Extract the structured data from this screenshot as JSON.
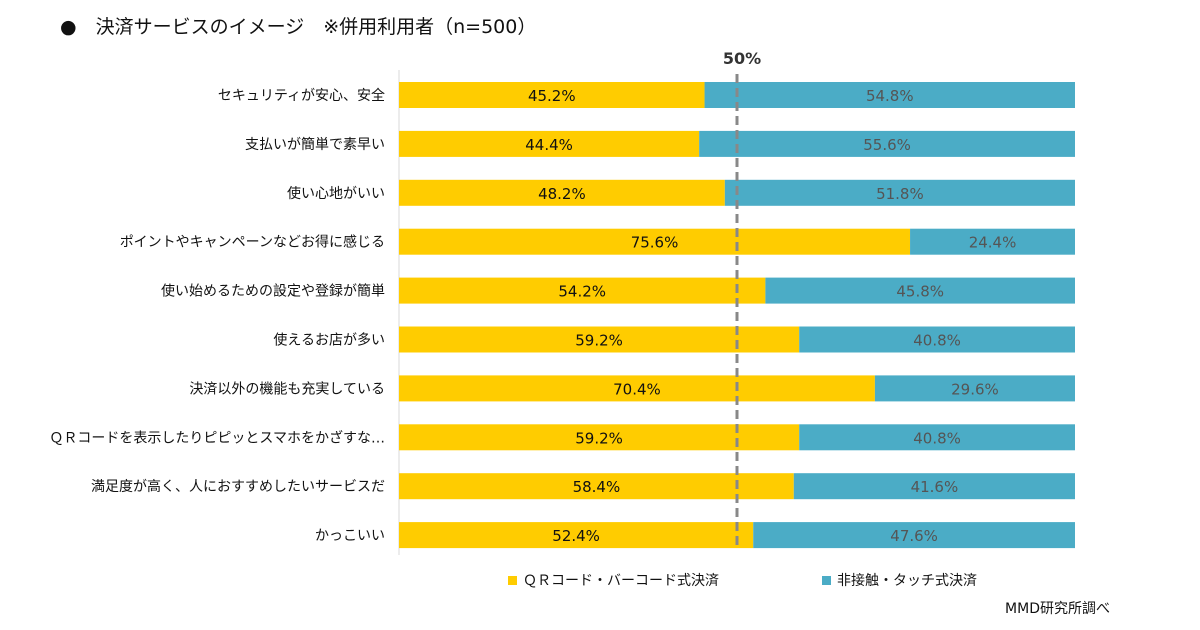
{
  "title": "●　決済サービスのイメージ　※併用利用者（n=500）",
  "source": "MMD研究所調べ",
  "chart_data": {
    "type": "bar",
    "orientation": "horizontal",
    "stacked": "100%",
    "categories": [
      "セキュリティが安心、安全",
      "支払いが簡単で素早い",
      "使い心地がいい",
      "ポイントやキャンペーンなどお得に感じる",
      "使い始めるための設定や登録が簡単",
      "使えるお店が多い",
      "決済以外の機能も充実している",
      "ＱＲコードを表示したりピピッとスマホをかざすな…",
      "満足度が高く、人におすすめしたいサービスだ",
      "かっこいい"
    ],
    "series": [
      {
        "name": "ＱＲコード・バーコード式決済",
        "color": "#FFCC00",
        "values": [
          45.2,
          44.4,
          48.2,
          75.6,
          54.2,
          59.2,
          70.4,
          59.2,
          58.4,
          52.4
        ]
      },
      {
        "name": "非接触・タッチ式決済",
        "color": "#4BACC6",
        "values": [
          54.8,
          55.6,
          51.8,
          24.4,
          45.8,
          40.8,
          29.6,
          40.8,
          41.6,
          47.6
        ]
      }
    ],
    "xlim": [
      0,
      100
    ],
    "reference_line": {
      "value": 50,
      "label": "50%",
      "style": "dashed",
      "color": "#888888"
    },
    "data_label_suffix": "%",
    "legend_position": "bottom",
    "grid": false
  }
}
